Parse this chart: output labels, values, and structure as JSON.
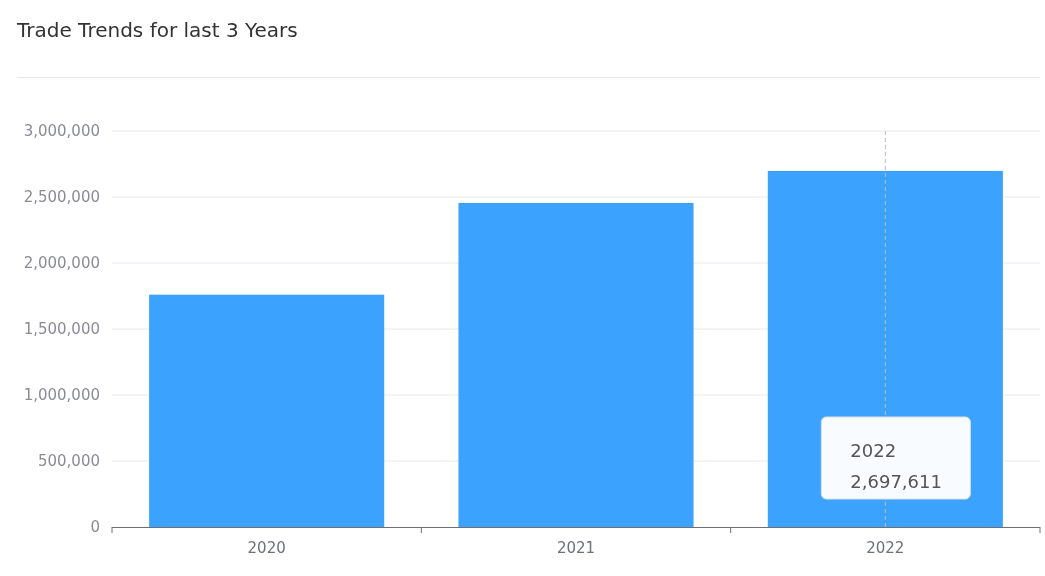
{
  "chart_data": {
    "type": "bar",
    "title": "Trade Trends for last 3 Years",
    "categories": [
      "2020",
      "2021",
      "2022"
    ],
    "values": [
      1760000,
      2455000,
      2697611
    ],
    "color": "#3ba3fd",
    "ylim": [
      0,
      3000000
    ],
    "yticks": [
      {
        "value": 0,
        "label": "0"
      },
      {
        "value": 500000,
        "label": "500,000"
      },
      {
        "value": 1000000,
        "label": "1,000,000"
      },
      {
        "value": 1500000,
        "label": "1,500,000"
      },
      {
        "value": 2000000,
        "label": "2,000,000"
      },
      {
        "value": 2500000,
        "label": "2,500,000"
      },
      {
        "value": 3000000,
        "label": "3,000,000"
      }
    ],
    "grid": "y",
    "ref_lines": [
      {
        "axis": "x",
        "value": "2022",
        "line_style": "dashed",
        "color": "#bbbbbb"
      }
    ],
    "annotations": [
      "2022\n2,697,611"
    ]
  }
}
